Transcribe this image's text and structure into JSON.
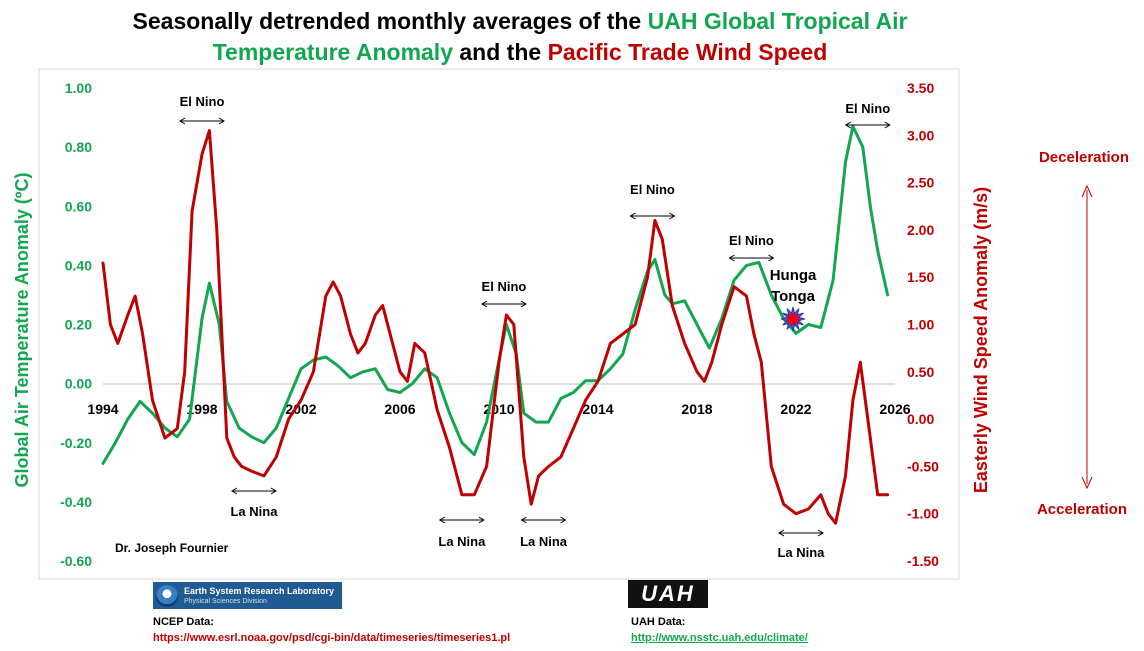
{
  "title": {
    "part1": "Seasonally detrended monthly averages of the ",
    "part2": "UAH Global Tropical Air",
    "part3": "Temperature Anomaly",
    "part4": " and the ",
    "part5": "Pacific Trade Wind Speed"
  },
  "colors": {
    "green": "#13a651",
    "red": "#c00000",
    "text": "#000000"
  },
  "chart_data": {
    "type": "line",
    "title": "Seasonally detrended monthly averages of the UAH Global Tropical Air Temperature Anomaly and the Pacific Trade Wind Speed",
    "xlim": [
      1994,
      2026
    ],
    "x_ticks": [
      "1994",
      "1998",
      "2002",
      "2006",
      "2010",
      "2014",
      "2018",
      "2022",
      "2026"
    ],
    "y_left": {
      "label": "Global Air Temperature Anomaly (ºC)",
      "range": [
        -0.6,
        1.0
      ],
      "ticks": [
        "1.00",
        "0.80",
        "0.60",
        "0.40",
        "0.20",
        "0.00",
        "-0.20",
        "-0.40",
        "-0.60"
      ]
    },
    "y_right": {
      "label": "Easterly Wind Speed Anomaly (m/s)",
      "range": [
        -1.5,
        3.5
      ],
      "ticks": [
        "3.50",
        "3.00",
        "2.50",
        "2.00",
        "1.50",
        "1.00",
        "0.50",
        "0.00",
        "-0.50",
        "-1.00",
        "-1.50"
      ]
    },
    "series": [
      {
        "name": "UAH Global Tropical Air Temperature Anomaly (ºC)",
        "axis": "left",
        "color": "#13a651",
        "x": [
          1994.0,
          1994.5,
          1995.0,
          1995.5,
          1996.0,
          1996.5,
          1997.0,
          1997.5,
          1998.0,
          1998.3,
          1998.7,
          1999.0,
          1999.5,
          2000.0,
          2000.5,
          2001.0,
          2001.5,
          2002.0,
          2002.5,
          2003.0,
          2003.5,
          2004.0,
          2004.5,
          2005.0,
          2005.5,
          2006.0,
          2006.5,
          2007.0,
          2007.5,
          2008.0,
          2008.5,
          2009.0,
          2009.5,
          2010.0,
          2010.3,
          2010.7,
          2011.0,
          2011.5,
          2012.0,
          2012.5,
          2013.0,
          2013.5,
          2014.0,
          2014.5,
          2015.0,
          2015.5,
          2016.0,
          2016.3,
          2016.7,
          2017.0,
          2017.5,
          2018.0,
          2018.5,
          2019.0,
          2019.5,
          2020.0,
          2020.5,
          2021.0,
          2021.5,
          2022.0,
          2022.5,
          2023.0,
          2023.5,
          2024.0,
          2024.3,
          2024.7,
          2025.0,
          2025.3,
          2025.7
        ],
        "values": [
          -0.27,
          -0.2,
          -0.12,
          -0.06,
          -0.1,
          -0.15,
          -0.18,
          -0.12,
          0.22,
          0.34,
          0.2,
          -0.06,
          -0.15,
          -0.18,
          -0.2,
          -0.15,
          -0.05,
          0.05,
          0.08,
          0.09,
          0.06,
          0.02,
          0.04,
          0.05,
          -0.02,
          -0.03,
          0.0,
          0.05,
          0.02,
          -0.1,
          -0.2,
          -0.24,
          -0.13,
          0.08,
          0.2,
          0.1,
          -0.1,
          -0.13,
          -0.13,
          -0.05,
          -0.03,
          0.01,
          0.01,
          0.05,
          0.1,
          0.25,
          0.38,
          0.42,
          0.3,
          0.27,
          0.28,
          0.2,
          0.12,
          0.22,
          0.35,
          0.4,
          0.41,
          0.3,
          0.22,
          0.17,
          0.2,
          0.19,
          0.35,
          0.75,
          0.87,
          0.8,
          0.6,
          0.45,
          0.3
        ]
      },
      {
        "name": "Easterly Wind Speed Anomaly (m/s)",
        "axis": "right",
        "color": "#c00000",
        "x": [
          1994.0,
          1994.3,
          1994.6,
          1995.0,
          1995.3,
          1995.6,
          1996.0,
          1996.5,
          1997.0,
          1997.3,
          1997.6,
          1998.0,
          1998.3,
          1998.6,
          1999.0,
          1999.3,
          1999.6,
          2000.0,
          2000.5,
          2001.0,
          2001.5,
          2002.0,
          2002.5,
          2003.0,
          2003.3,
          2003.6,
          2004.0,
          2004.3,
          2004.6,
          2005.0,
          2005.3,
          2005.6,
          2006.0,
          2006.3,
          2006.6,
          2007.0,
          2007.5,
          2008.0,
          2008.5,
          2009.0,
          2009.5,
          2010.0,
          2010.3,
          2010.6,
          2011.0,
          2011.3,
          2011.6,
          2012.0,
          2012.5,
          2013.0,
          2013.5,
          2014.0,
          2014.5,
          2015.0,
          2015.5,
          2016.0,
          2016.3,
          2016.6,
          2017.0,
          2017.5,
          2018.0,
          2018.3,
          2018.6,
          2019.0,
          2019.5,
          2020.0,
          2020.3,
          2020.6,
          2021.0,
          2021.5,
          2022.0,
          2022.5,
          2023.0,
          2023.3,
          2023.6,
          2024.0,
          2024.3,
          2024.6,
          2025.0,
          2025.3,
          2025.7
        ],
        "values": [
          1.65,
          1.0,
          0.8,
          1.1,
          1.3,
          0.9,
          0.2,
          -0.2,
          -0.1,
          0.5,
          2.2,
          2.8,
          3.05,
          2.0,
          -0.2,
          -0.4,
          -0.5,
          -0.55,
          -0.6,
          -0.4,
          0.0,
          0.2,
          0.5,
          1.3,
          1.45,
          1.3,
          0.9,
          0.7,
          0.8,
          1.1,
          1.2,
          0.9,
          0.5,
          0.4,
          0.8,
          0.7,
          0.1,
          -0.3,
          -0.8,
          -0.8,
          -0.5,
          0.6,
          1.1,
          1.0,
          -0.4,
          -0.9,
          -0.6,
          -0.5,
          -0.4,
          -0.1,
          0.2,
          0.4,
          0.8,
          0.9,
          1.0,
          1.5,
          2.1,
          1.9,
          1.2,
          0.8,
          0.5,
          0.4,
          0.6,
          1.0,
          1.4,
          1.3,
          0.9,
          0.6,
          -0.5,
          -0.9,
          -1.0,
          -0.95,
          -0.8,
          -1.0,
          -1.1,
          -0.6,
          0.2,
          0.6,
          -0.2,
          -0.8,
          -0.8
        ]
      }
    ],
    "annotations": {
      "el_nino": [
        {
          "text": "El Nino",
          "x": 1998.0
        },
        {
          "text": "El Nino",
          "x": 2010.2
        },
        {
          "text": "El Nino",
          "x": 2016.2
        },
        {
          "text": "El Nino",
          "x": 2020.2
        },
        {
          "text": "El Nino",
          "x": 2024.9
        }
      ],
      "la_nina": [
        {
          "text": "La Nina",
          "x": 2000.1
        },
        {
          "text": "La Nina",
          "x": 2008.5
        },
        {
          "text": "La Nina",
          "x": 2011.8
        },
        {
          "text": "La Nina",
          "x": 2022.2
        }
      ],
      "hunga_tonga": {
        "line1": "Hunga",
        "line2": "Tonga",
        "x": 2021.8
      },
      "author": "Dr. Joseph Fournier",
      "deceleration": "Deceleration",
      "acceleration": "Acceleration"
    }
  },
  "footer": {
    "esrl_line1": "Earth System Research Laboratory",
    "esrl_line2": "Physical Sciences Division",
    "ncep_label": "NCEP Data:",
    "ncep_url": "https://www.esrl.noaa.gov/psd/cgi-bin/data/timeseries/timeseries1.pl",
    "uah_logo": "UAH",
    "uah_label": "UAH Data:",
    "uah_url": "http://www.nsstc.uah.edu/climate/"
  }
}
